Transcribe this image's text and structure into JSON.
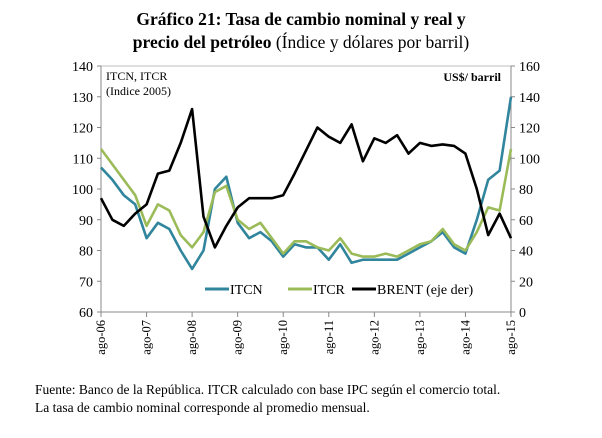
{
  "chart_data": {
    "type": "line",
    "title_bold": "Gráfico 21: Tasa de cambio nominal y real y precio del petróleo",
    "title_line1": "Gráfico 21: Tasa de cambio nominal y real y",
    "title_line2_bold": "precio del petróleo",
    "title_line2_rest": " (Índice y dólares por barril)",
    "left_axis_label_1": "ITCN, ITCR",
    "left_axis_label_2": "(Indice 2005)",
    "right_axis_label": "US$/ barril",
    "ylim_left": [
      60,
      140
    ],
    "ylim_right": [
      0,
      160
    ],
    "yticks_left": [
      "60",
      "70",
      "80",
      "90",
      "100",
      "110",
      "120",
      "130",
      "140"
    ],
    "yticks_right": [
      "0",
      "20",
      "40",
      "60",
      "80",
      "100",
      "120",
      "140",
      "160"
    ],
    "xticks": [
      "ago-06",
      "ago-07",
      "ago-08",
      "ago-09",
      "ago-10",
      "ago-11",
      "ago-12",
      "ago-13",
      "ago-14",
      "ago-15"
    ],
    "x_frequency": "quarterly from ago-06 to ago-15",
    "series": [
      {
        "name": "ITCN",
        "axis": "left",
        "color": "#31859c",
        "values": [
          107,
          103,
          98,
          95,
          84,
          89,
          87,
          80,
          74,
          80,
          100,
          104,
          89,
          84,
          86,
          83,
          78,
          82,
          81,
          81,
          77,
          82,
          76,
          77,
          77,
          77,
          77,
          79,
          81,
          83,
          86,
          81,
          79,
          90,
          103,
          106,
          130
        ]
      },
      {
        "name": "ITCR",
        "axis": "left",
        "color": "#9bbb59",
        "values": [
          113,
          108,
          103,
          98,
          88,
          95,
          93,
          85,
          81,
          86,
          99,
          101,
          90,
          87,
          89,
          84,
          79,
          83,
          83,
          81,
          80,
          84,
          79,
          78,
          78,
          79,
          78,
          80,
          82,
          83,
          87,
          82,
          80,
          86,
          94,
          93,
          113
        ]
      },
      {
        "name": "BRENT (eje der)",
        "axis": "right",
        "color": "#000000",
        "values": [
          74,
          60,
          56,
          64,
          70,
          90,
          92,
          110,
          132,
          62,
          42,
          56,
          68,
          74,
          74,
          74,
          76,
          90,
          105,
          120,
          114,
          110,
          122,
          98,
          113,
          110,
          115,
          103,
          110,
          108,
          109,
          108,
          103,
          80,
          50,
          64,
          48
        ]
      }
    ],
    "legend_placement": "bottom-inside",
    "source_line1": "Fuente: Banco de la República. ITCR calculado con base IPC según el comercio total.",
    "source_line2": "La tasa de cambio nominal corresponde al promedio mensual."
  }
}
